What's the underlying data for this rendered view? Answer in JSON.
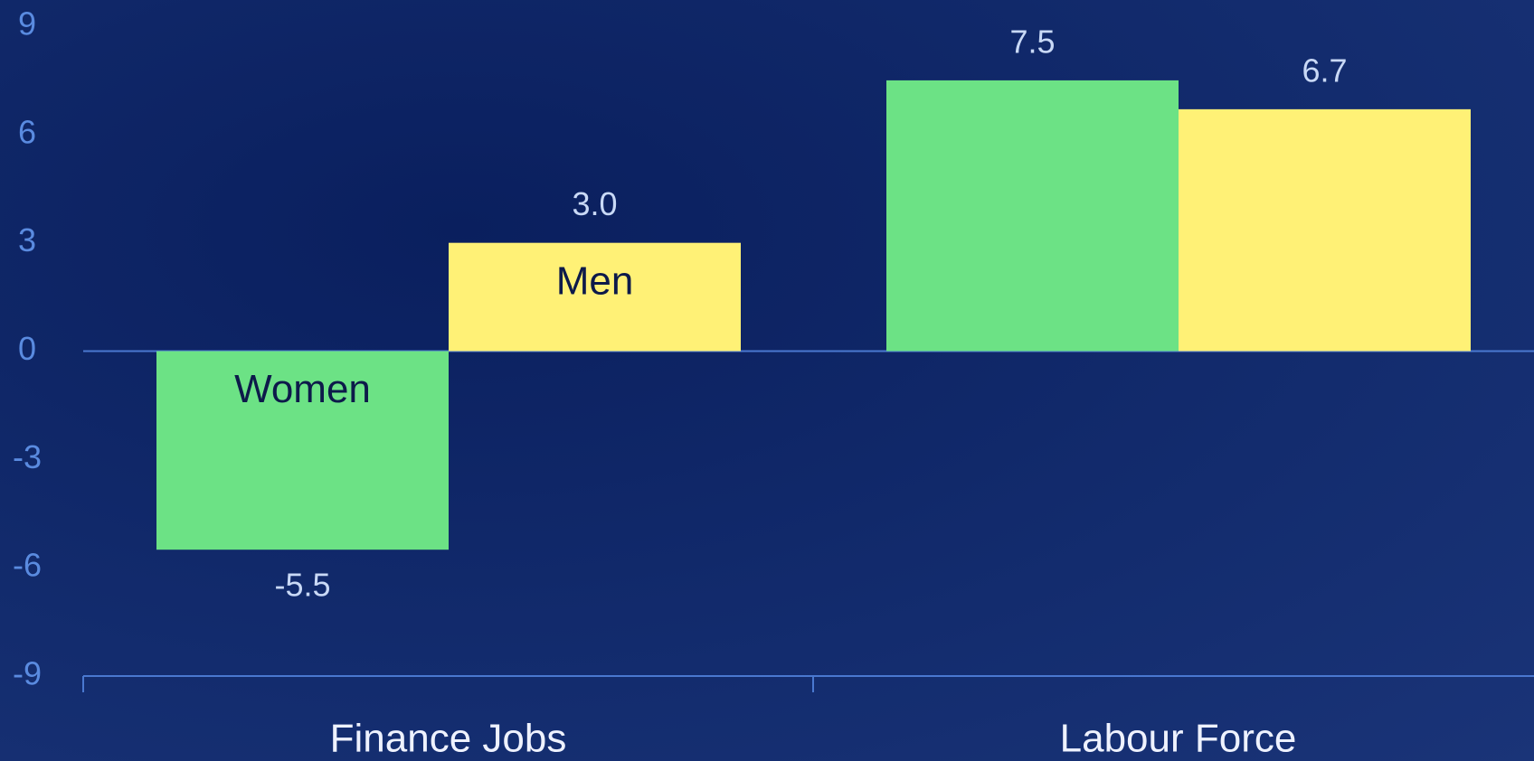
{
  "chart_data": {
    "type": "bar",
    "categories": [
      "Finance Jobs",
      "Labour Force"
    ],
    "series": [
      {
        "name": "Women",
        "color": "#6ce285",
        "values": [
          -5.5,
          7.5
        ],
        "value_labels": [
          "-5.5",
          "7.5"
        ]
      },
      {
        "name": "Men",
        "color": "#fff176",
        "values": [
          3.0,
          6.7
        ],
        "value_labels": [
          "3.0",
          "6.7"
        ]
      }
    ],
    "ylim": [
      -9,
      9
    ],
    "yticks": [
      -9,
      -6,
      -3,
      0,
      3,
      6,
      9
    ],
    "grid": false
  }
}
